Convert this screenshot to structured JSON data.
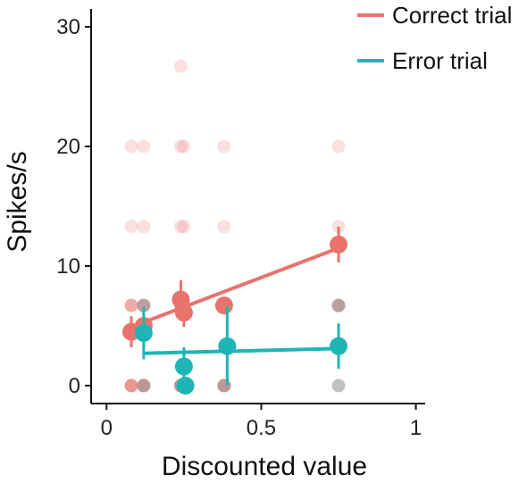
{
  "chart_data": {
    "type": "scatter",
    "xlabel": "Discounted value",
    "ylabel": "Spikes/s",
    "xlim": [
      -0.05,
      1.03
    ],
    "ylim": [
      -1.5,
      31.5
    ],
    "x_ticks": [
      0,
      0.5,
      1
    ],
    "x_tick_labels": [
      "0",
      "0.5",
      "1"
    ],
    "y_ticks": [
      0,
      10,
      20,
      30
    ],
    "y_tick_labels": [
      "0",
      "10",
      "20",
      "30"
    ],
    "grid": false,
    "legend_position": "top-right",
    "series": [
      {
        "name": "Correct trial",
        "color": "#E8736C",
        "raw_points": [
          {
            "x": 0.08,
            "y": 20
          },
          {
            "x": 0.08,
            "y": 13.3
          },
          {
            "x": 0.08,
            "y": 6.7
          },
          {
            "x": 0.08,
            "y": 0
          },
          {
            "x": 0.12,
            "y": 20
          },
          {
            "x": 0.12,
            "y": 13.3
          },
          {
            "x": 0.12,
            "y": 6.7
          },
          {
            "x": 0.12,
            "y": 0
          },
          {
            "x": 0.24,
            "y": 26.7
          },
          {
            "x": 0.24,
            "y": 20
          },
          {
            "x": 0.24,
            "y": 13.3
          },
          {
            "x": 0.24,
            "y": 6.7
          },
          {
            "x": 0.24,
            "y": 0
          },
          {
            "x": 0.25,
            "y": 20
          },
          {
            "x": 0.25,
            "y": 13.3
          },
          {
            "x": 0.25,
            "y": 6.7
          },
          {
            "x": 0.38,
            "y": 20
          },
          {
            "x": 0.38,
            "y": 13.3
          },
          {
            "x": 0.38,
            "y": 6.7
          },
          {
            "x": 0.38,
            "y": 0
          },
          {
            "x": 0.75,
            "y": 20
          },
          {
            "x": 0.75,
            "y": 13.3
          },
          {
            "x": 0.75,
            "y": 6.7
          }
        ],
        "means": [
          {
            "x": 0.08,
            "y": 4.5,
            "err": 1.3
          },
          {
            "x": 0.12,
            "y": 5.0,
            "err": 1.1
          },
          {
            "x": 0.24,
            "y": 7.2,
            "err": 1.6
          },
          {
            "x": 0.25,
            "y": 6.1,
            "err": 1.2
          },
          {
            "x": 0.38,
            "y": 6.7,
            "err": 0.6
          },
          {
            "x": 0.75,
            "y": 11.8,
            "err": 1.5
          }
        ],
        "fit": {
          "x": [
            0.08,
            0.75
          ],
          "y": [
            4.9,
            11.5
          ]
        }
      },
      {
        "name": "Error trial",
        "color": "#1FB5B5",
        "raw_points": [
          {
            "x": 0.12,
            "y": 6.7
          },
          {
            "x": 0.12,
            "y": 0
          },
          {
            "x": 0.24,
            "y": 6.7
          },
          {
            "x": 0.24,
            "y": 0
          },
          {
            "x": 0.38,
            "y": 6.7
          },
          {
            "x": 0.38,
            "y": 0
          },
          {
            "x": 0.75,
            "y": 6.7
          },
          {
            "x": 0.75,
            "y": 0
          }
        ],
        "means": [
          {
            "x": 0.12,
            "y": 4.4,
            "err": 2.2
          },
          {
            "x": 0.25,
            "y": 1.6,
            "err": 1.6
          },
          {
            "x": 0.255,
            "y": 0.0,
            "err": 0
          },
          {
            "x": 0.39,
            "y": 3.3,
            "err": 3.3
          },
          {
            "x": 0.75,
            "y": 3.3,
            "err": 1.9
          }
        ],
        "fit": {
          "x": [
            0.12,
            0.75
          ],
          "y": [
            2.7,
            3.1
          ]
        }
      }
    ]
  }
}
